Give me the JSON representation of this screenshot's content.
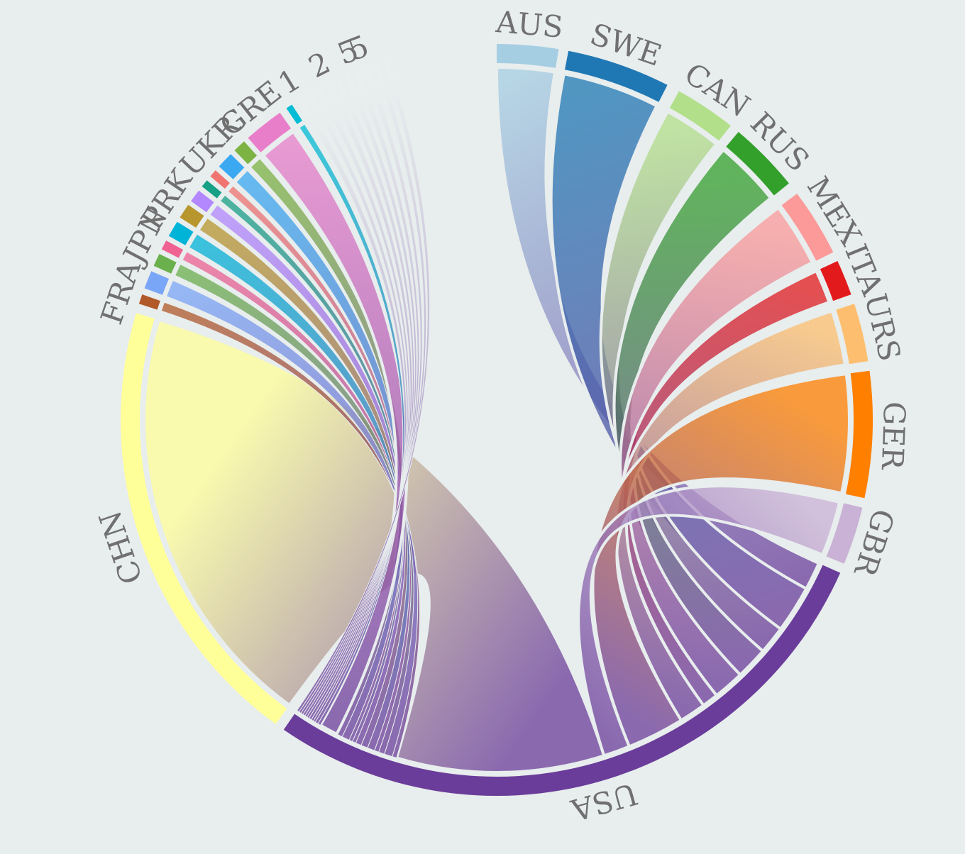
{
  "chart_data": {
    "type": "chord",
    "title": "",
    "center_node": "USA",
    "unit": "degrees",
    "nodes": [
      {
        "label": "AUS",
        "start": 0.0,
        "end": 9.5,
        "color": "#a6cee3"
      },
      {
        "label": "SWE",
        "start": 11.0,
        "end": 27.0,
        "color": "#1f78b4"
      },
      {
        "label": "CAN",
        "start": 29.0,
        "end": 38.5,
        "color": "#b2df8a"
      },
      {
        "label": "RUS",
        "start": 40.0,
        "end": 51.0,
        "color": "#33a02c"
      },
      {
        "label": "MEX",
        "start": 53.0,
        "end": 63.5,
        "color": "#fb9a99"
      },
      {
        "label": "ITA",
        "start": 65.0,
        "end": 70.5,
        "color": "#e31a1c"
      },
      {
        "label": "URS",
        "start": 72.0,
        "end": 81.0,
        "color": "#fdbf6f"
      },
      {
        "label": "GER",
        "start": 82.5,
        "end": 102.0,
        "color": "#ff7f00"
      },
      {
        "label": "GBR",
        "start": 103.5,
        "end": 112.5,
        "color": "#cab2d6"
      },
      {
        "label": "USA",
        "start": 114.0,
        "end": 214.5,
        "color": "#6a3d9a"
      },
      {
        "label": "CHN",
        "start": 216.0,
        "end": 286.5,
        "color": "#ffff99"
      },
      {
        "label": "FRA",
        "start": 288.0,
        "end": 289.5,
        "color": "#b15928"
      },
      {
        "label": "",
        "start": 290.5,
        "end": 293.3,
        "color": "#7aa6f8"
      },
      {
        "label": "",
        "start": 294.2,
        "end": 296.2,
        "color": "#6ab04c"
      },
      {
        "label": "JPN",
        "start": 297.0,
        "end": 298.5,
        "color": "#f06292"
      },
      {
        "label": "",
        "start": 299.3,
        "end": 301.8,
        "color": "#00b4d8"
      },
      {
        "label": "PRK",
        "start": 302.6,
        "end": 304.9,
        "color": "#b8962e"
      },
      {
        "label": "",
        "start": 305.6,
        "end": 307.6,
        "color": "#b388ff"
      },
      {
        "label": "",
        "start": 308.4,
        "end": 309.6,
        "color": "#16a085"
      },
      {
        "label": "",
        "start": 310.4,
        "end": 311.6,
        "color": "#f07470"
      },
      {
        "label": "UKR",
        "start": 312.4,
        "end": 315.0,
        "color": "#3aa9f2"
      },
      {
        "label": "",
        "start": 315.8,
        "end": 317.8,
        "color": "#7cb342"
      },
      {
        "label": "GRE",
        "start": 318.6,
        "end": 324.8,
        "color": "#e87ec9"
      },
      {
        "label": "",
        "start": 326.0,
        "end": 327.0,
        "color": "#00bcd4"
      },
      {
        "label": "1",
        "start": 328.0,
        "end": 329.0,
        "color": "#e9efef"
      },
      {
        "label": "",
        "start": 329.8,
        "end": 330.6,
        "color": "#e9efef"
      },
      {
        "label": "",
        "start": 331.4,
        "end": 332.2,
        "color": "#e9efef"
      },
      {
        "label": "2",
        "start": 333.0,
        "end": 333.9,
        "color": "#e9efef"
      },
      {
        "label": "",
        "start": 334.6,
        "end": 335.4,
        "color": "#e9efef"
      },
      {
        "label": "",
        "start": 336.1,
        "end": 336.9,
        "color": "#e9efef"
      },
      {
        "label": "5",
        "start": 337.6,
        "end": 338.4,
        "color": "#e9efef"
      },
      {
        "label": "5",
        "start": 339.2,
        "end": 340.0,
        "color": "#e9efef"
      },
      {
        "label": "",
        "start": 341.0,
        "end": 341.8,
        "color": "#e9efef"
      },
      {
        "label": "",
        "start": 342.5,
        "end": 343.3,
        "color": "#e9efef"
      }
    ]
  }
}
